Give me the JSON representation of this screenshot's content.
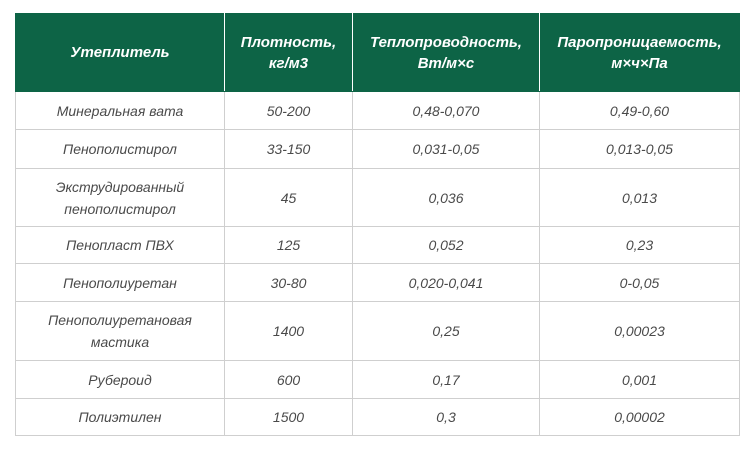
{
  "table": {
    "headers": [
      "Утеплитель",
      "Плотность, кг/м3",
      "Теплопроводность, Вт/м×с",
      "Паропроницаемость, м×ч×Па"
    ],
    "rows": [
      [
        "Минеральная вата",
        "50-200",
        "0,48-0,070",
        "0,49-0,60"
      ],
      [
        "Пенополистирол",
        "33-150",
        "0,031-0,05",
        "0,013-0,05"
      ],
      [
        "Экструдированный пенополистирол",
        "45",
        "0,036",
        "0,013"
      ],
      [
        "Пенопласт ПВХ",
        "125",
        "0,052",
        "0,23"
      ],
      [
        "Пенополиуретан",
        "30-80",
        "0,020-0,041",
        "0-0,05"
      ],
      [
        "Пенополиуретановая мастика",
        "1400",
        "0,25",
        "0,00023"
      ],
      [
        "Рубероид",
        "600",
        "0,17",
        "0,001"
      ],
      [
        "Полиэтилен",
        "1500",
        "0,3",
        "0,00002"
      ]
    ]
  },
  "colors": {
    "header_bg": "#0d6446",
    "header_text": "#ffffff",
    "body_text": "#4a4a4a",
    "grid": "#cfcfcf"
  }
}
